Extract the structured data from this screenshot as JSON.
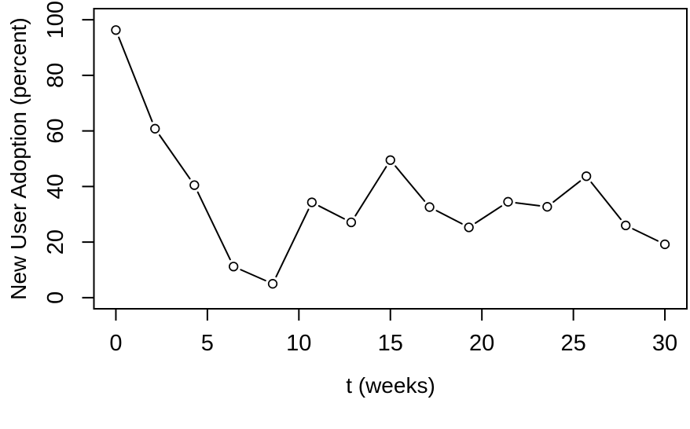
{
  "figure": {
    "background_color": "#ffffff",
    "foreground_color": "#000000"
  },
  "chart_data": {
    "type": "line",
    "title": "",
    "xlabel": "t (weeks)",
    "ylabel": "New User Adoption (percent)",
    "x": [
      0,
      2.14,
      4.29,
      6.43,
      8.57,
      10.71,
      12.86,
      15,
      17.14,
      19.29,
      21.43,
      23.57,
      25.71,
      27.86,
      30
    ],
    "y": [
      96.3,
      60.8,
      40.5,
      11.2,
      5.0,
      34.3,
      27.1,
      49.5,
      32.6,
      25.3,
      34.5,
      32.7,
      43.7,
      26.0,
      19.2
    ],
    "x_ticks": [
      0,
      5,
      10,
      15,
      20,
      25,
      30
    ],
    "y_ticks": [
      0,
      20,
      40,
      60,
      80,
      100
    ],
    "xlim": [
      -1.2,
      31.2
    ],
    "ylim": [
      -4,
      104
    ],
    "grid": false,
    "legend_position": "none",
    "marker": "open-circle",
    "marker_fill": "#ffffff",
    "line_color": "#000000",
    "series_name": "new-user-adoption"
  }
}
